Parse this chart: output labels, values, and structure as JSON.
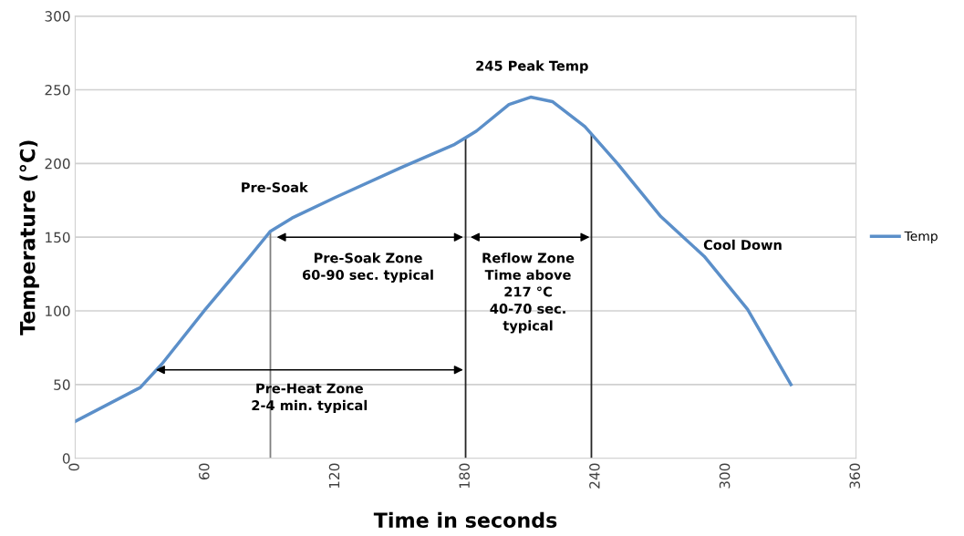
{
  "chart_data": {
    "type": "line",
    "xlabel": "Time in seconds",
    "ylabel": "Temperature (°C)",
    "xlim": [
      0,
      360
    ],
    "xticks": [
      0,
      60,
      120,
      180,
      240,
      300,
      360
    ],
    "ylim": [
      0,
      300
    ],
    "yticks": [
      0,
      50,
      100,
      150,
      200,
      250,
      300
    ],
    "grid": "y",
    "legend": "right",
    "marker": "none",
    "line_style": "solid",
    "series": [
      {
        "name": "Temp",
        "color": "#5b8fc9",
        "x": [
          0,
          30,
          40,
          60,
          80,
          90,
          100,
          120,
          150,
          175,
          185,
          200,
          210,
          220,
          235,
          250,
          270,
          290,
          310,
          330
        ],
        "values": [
          25,
          48,
          64,
          101,
          136,
          154,
          163,
          177,
          197,
          213,
          222,
          240,
          245,
          242,
          225,
          200,
          164,
          137,
          101,
          50
        ]
      }
    ],
    "ref_lines": [
      {
        "axis": "x",
        "value": 90,
        "color": "#7f7f7f"
      },
      {
        "axis": "x",
        "value": 180,
        "color": "#262626"
      },
      {
        "axis": "x",
        "value": 238,
        "color": "#262626"
      }
    ],
    "annotations": [
      "Pre-Soak Zone\n60-90 sec. typical",
      "Reflow Zone\nTime above\n217 °C\n40-70 sec.\ntypical",
      "Pre-Heat Zone\n2-4 min. typical",
      "245 Peak Temp",
      "Pre-Soak",
      "Cool Down"
    ]
  }
}
